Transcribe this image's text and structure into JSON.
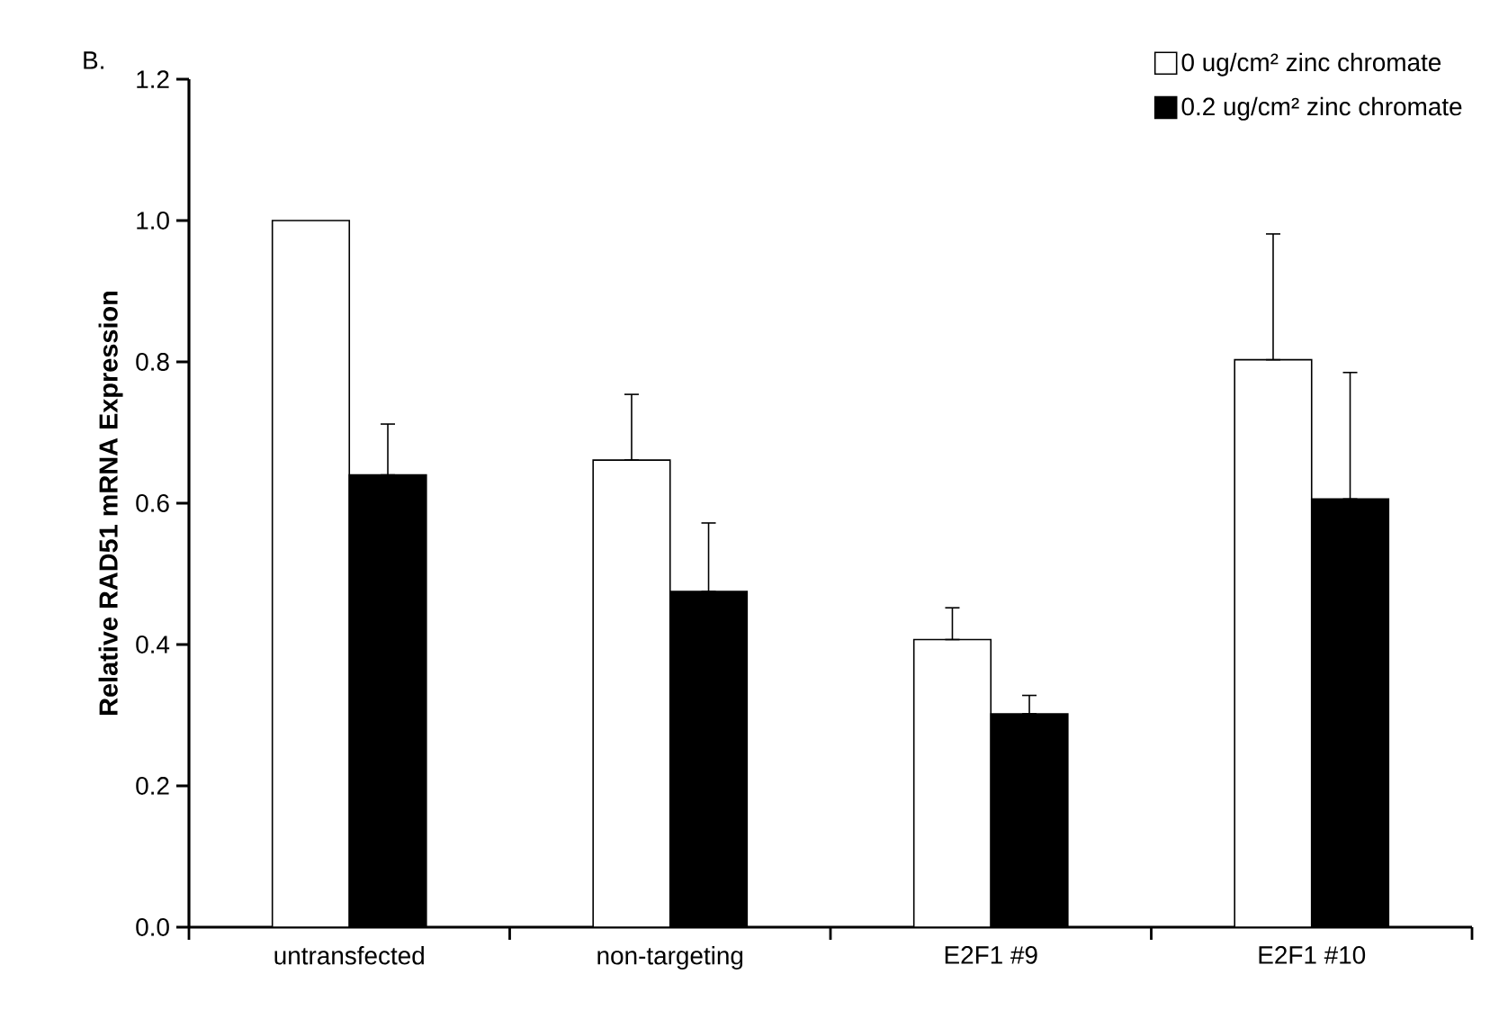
{
  "chart_data": {
    "type": "bar",
    "ylabel": "Relative RAD51 mRNA Expression",
    "annotations": [
      "B."
    ],
    "categories": [
      "untransfected",
      "non-targeting",
      "E2F1 #9",
      "E2F1 #10"
    ],
    "series": [
      {
        "name": "0 ug/cm² zinc chromate",
        "color": "#ffffff",
        "values": [
          1.0,
          0.661,
          0.407,
          0.803
        ],
        "errors": [
          null,
          [
            0.661,
            0.754
          ],
          [
            0.407,
            0.452
          ],
          [
            0.803,
            0.981
          ]
        ]
      },
      {
        "name": "0.2 ug/cm² zinc chromate",
        "color": "#000000",
        "values": [
          0.64,
          0.475,
          0.302,
          0.606
        ],
        "errors": [
          [
            0.64,
            0.712
          ],
          [
            0.475,
            0.572
          ],
          [
            0.302,
            0.328
          ],
          [
            0.606,
            0.785
          ]
        ]
      }
    ],
    "ylim": [
      0,
      1.2
    ],
    "yticks": [
      {
        "value": 0,
        "label": "0.0"
      },
      {
        "value": 0.2,
        "label": "0.2"
      },
      {
        "value": 0.4,
        "label": "0.4"
      },
      {
        "value": 0.6,
        "label": "0.6"
      },
      {
        "value": 0.8,
        "label": "0.8"
      },
      {
        "value": 1.0,
        "label": "1.0"
      },
      {
        "value": 1.2,
        "label": "1.2"
      }
    ],
    "grid": false,
    "legend": "top right"
  }
}
